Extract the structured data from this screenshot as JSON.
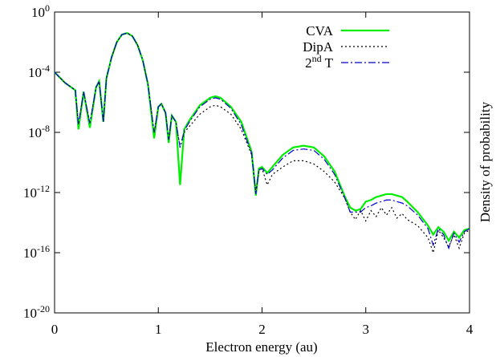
{
  "chart_data": {
    "type": "line",
    "xlabel": "Electron energy (au)",
    "ylabel": "Density of probability",
    "log_y": true,
    "legend": "top-right",
    "xlim": [
      0,
      4
    ],
    "xticks": [
      0,
      1,
      2,
      3,
      4
    ],
    "ylim": [
      1e-20,
      1
    ],
    "yticks": [
      {
        "value": 1e-20,
        "label": "10^-20"
      },
      {
        "value": 1e-16,
        "label": "10^-16"
      },
      {
        "value": 1e-12,
        "label": "10^-12"
      },
      {
        "value": 1e-08,
        "label": "10^-8"
      },
      {
        "value": 0.0001,
        "label": "10^-4"
      },
      {
        "value": 1,
        "label": "10^0"
      }
    ],
    "x": [
      0,
      0.1,
      0.2,
      0.23,
      0.28,
      0.34,
      0.4,
      0.43,
      0.47,
      0.5,
      0.55,
      0.6,
      0.65,
      0.7,
      0.75,
      0.8,
      0.85,
      0.9,
      0.96,
      1.0,
      1.03,
      1.07,
      1.1,
      1.13,
      1.17,
      1.21,
      1.25,
      1.3,
      1.4,
      1.5,
      1.55,
      1.6,
      1.7,
      1.8,
      1.9,
      1.94,
      1.97,
      2.0,
      2.05,
      2.1,
      2.2,
      2.3,
      2.4,
      2.5,
      2.6,
      2.7,
      2.8,
      2.85,
      2.9,
      2.95,
      3.0,
      3.05,
      3.1,
      3.15,
      3.2,
      3.25,
      3.3,
      3.35,
      3.4,
      3.5,
      3.6,
      3.65,
      3.7,
      3.75,
      3.8,
      3.85,
      3.9,
      3.95,
      4.0
    ],
    "series": [
      {
        "name": "CVA",
        "color": "#00ee00",
        "style": "solid",
        "values": [
          0.0001,
          2e-05,
          6.3e-06,
          1.6e-08,
          5e-06,
          2e-08,
          1e-05,
          2.5e-05,
          5e-08,
          4e-05,
          0.001,
          0.01,
          0.032,
          0.04,
          0.025,
          0.0063,
          0.00063,
          1.6e-05,
          4e-09,
          5e-07,
          7.9e-07,
          2e-07,
          2e-09,
          1.3e-07,
          5e-08,
          3.2e-12,
          1.6e-08,
          6.3e-08,
          6.3e-07,
          2e-06,
          2.5e-06,
          2e-06,
          5e-07,
          5e-08,
          5e-10,
          6.3e-13,
          4e-11,
          5e-11,
          2e-11,
          5e-11,
          3.2e-10,
          1e-09,
          1.3e-09,
          1e-09,
          2.5e-10,
          2.5e-11,
          5e-13,
          1e-13,
          6.3e-14,
          7.9e-14,
          2.5e-13,
          3.2e-13,
          5e-13,
          6.3e-13,
          7.9e-13,
          7.9e-13,
          6.3e-13,
          5e-13,
          2.5e-13,
          5e-14,
          6.3e-15,
          1.6e-15,
          5e-15,
          2.5e-15,
          6.3e-16,
          2.5e-15,
          1e-15,
          3.2e-15,
          4e-15
        ]
      },
      {
        "name": "DipA",
        "color": "#000000",
        "style": "dotted",
        "values": [
          0.0001,
          2e-05,
          6.3e-06,
          3.2e-08,
          5e-06,
          4e-08,
          1e-05,
          2.5e-05,
          5e-08,
          4e-05,
          0.001,
          0.01,
          0.032,
          0.04,
          0.025,
          0.0063,
          0.00063,
          1.6e-05,
          1e-08,
          5e-07,
          7.9e-07,
          2e-07,
          3.2e-09,
          1.3e-07,
          5e-08,
          1e-09,
          1e-08,
          2.5e-08,
          1.6e-07,
          5e-07,
          6.3e-07,
          5e-07,
          1.6e-07,
          1.6e-08,
          3.2e-10,
          1e-12,
          2.5e-11,
          4e-11,
          3.2e-12,
          1.6e-11,
          5e-11,
          1.3e-10,
          1.3e-10,
          7.9e-11,
          2.5e-11,
          5e-12,
          4e-13,
          5e-14,
          1.6e-14,
          6.3e-14,
          1.3e-14,
          6.3e-14,
          2.5e-14,
          1e-13,
          3.2e-14,
          1e-13,
          2e-14,
          4e-14,
          1.6e-14,
          6.3e-15,
          1e-15,
          1e-16,
          3.2e-15,
          1e-15,
          2.5e-16,
          1.6e-15,
          2e-16,
          2e-15,
          3.2e-15
        ]
      },
      {
        "name": "2nd T",
        "color": "#0000cc",
        "style": "dashdot",
        "values": [
          0.0001,
          2e-05,
          6.3e-06,
          3.2e-08,
          5e-06,
          4e-08,
          1e-05,
          2.5e-05,
          5e-08,
          4e-05,
          0.001,
          0.01,
          0.032,
          0.04,
          0.025,
          0.0063,
          0.00063,
          1.6e-05,
          1e-08,
          5e-07,
          7.9e-07,
          2e-07,
          3.2e-09,
          1.3e-07,
          5e-08,
          1e-09,
          1.3e-08,
          5e-08,
          5e-07,
          1.6e-06,
          2e-06,
          1.6e-06,
          4e-07,
          3.2e-08,
          4e-10,
          7.9e-13,
          3.2e-11,
          4e-11,
          1.6e-11,
          3.2e-11,
          2e-10,
          6.3e-10,
          7.9e-10,
          6.3e-10,
          1.6e-10,
          1.6e-11,
          4e-13,
          5e-14,
          5e-14,
          5e-14,
          1e-13,
          1.3e-13,
          2e-13,
          2.5e-13,
          3.2e-13,
          3.2e-13,
          2.5e-13,
          2e-13,
          1.3e-13,
          3.2e-14,
          4e-15,
          3.2e-16,
          4e-15,
          1.6e-15,
          2e-16,
          2e-15,
          5e-16,
          2.5e-15,
          4e-15
        ]
      }
    ]
  }
}
